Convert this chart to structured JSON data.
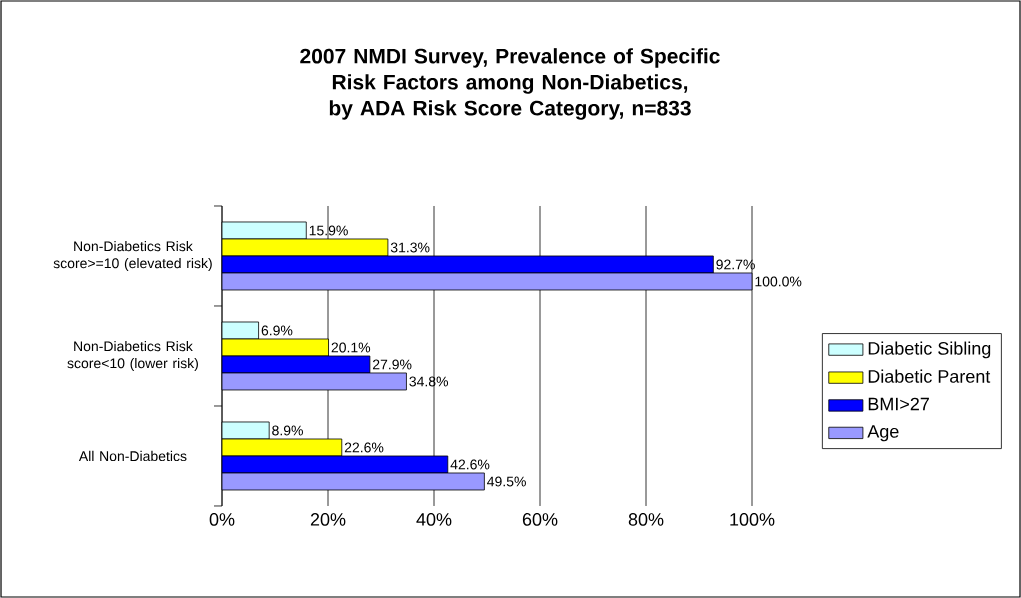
{
  "chart_data": {
    "type": "bar",
    "orientation": "horizontal",
    "title": "2007 NMDI Survey, Prevalence of Specific Risk Factors among Non-Diabetics, by ADA Risk Score Category, n=833",
    "categories": [
      "Non-Diabetics Risk score>=10 (elevated risk)",
      "Non-Diabetics Risk score<10 (lower risk)",
      "All Non-Diabetics"
    ],
    "series": [
      {
        "name": "Diabetic Sibling",
        "color": "#ccffff",
        "values": [
          15.9,
          6.9,
          8.9
        ],
        "value_labels": [
          "15.9%",
          "6.9%",
          "8.9%"
        ]
      },
      {
        "name": "Diabetic Parent",
        "color": "#ffff00",
        "values": [
          31.3,
          20.1,
          22.6
        ],
        "value_labels": [
          "31.3%",
          "20.1%",
          "22.6%"
        ]
      },
      {
        "name": "BMI>27",
        "color": "#0000ff",
        "values": [
          92.7,
          27.9,
          42.6
        ],
        "value_labels": [
          "92.7%",
          "27.9%",
          "42.6%"
        ]
      },
      {
        "name": "Age",
        "color": "#9999ff",
        "values": [
          100.0,
          34.8,
          49.5
        ],
        "value_labels": [
          "100.0%",
          "34.8%",
          "49.5%"
        ]
      }
    ],
    "xlim": [
      0,
      100
    ],
    "xticks": [
      {
        "value": 0,
        "label": "0%"
      },
      {
        "value": 20,
        "label": "20%"
      },
      {
        "value": 40,
        "label": "40%"
      },
      {
        "value": 60,
        "label": "60%"
      },
      {
        "value": 80,
        "label": "80%"
      },
      {
        "value": 100,
        "label": "100%"
      }
    ],
    "grid": "x",
    "legend": "right"
  }
}
